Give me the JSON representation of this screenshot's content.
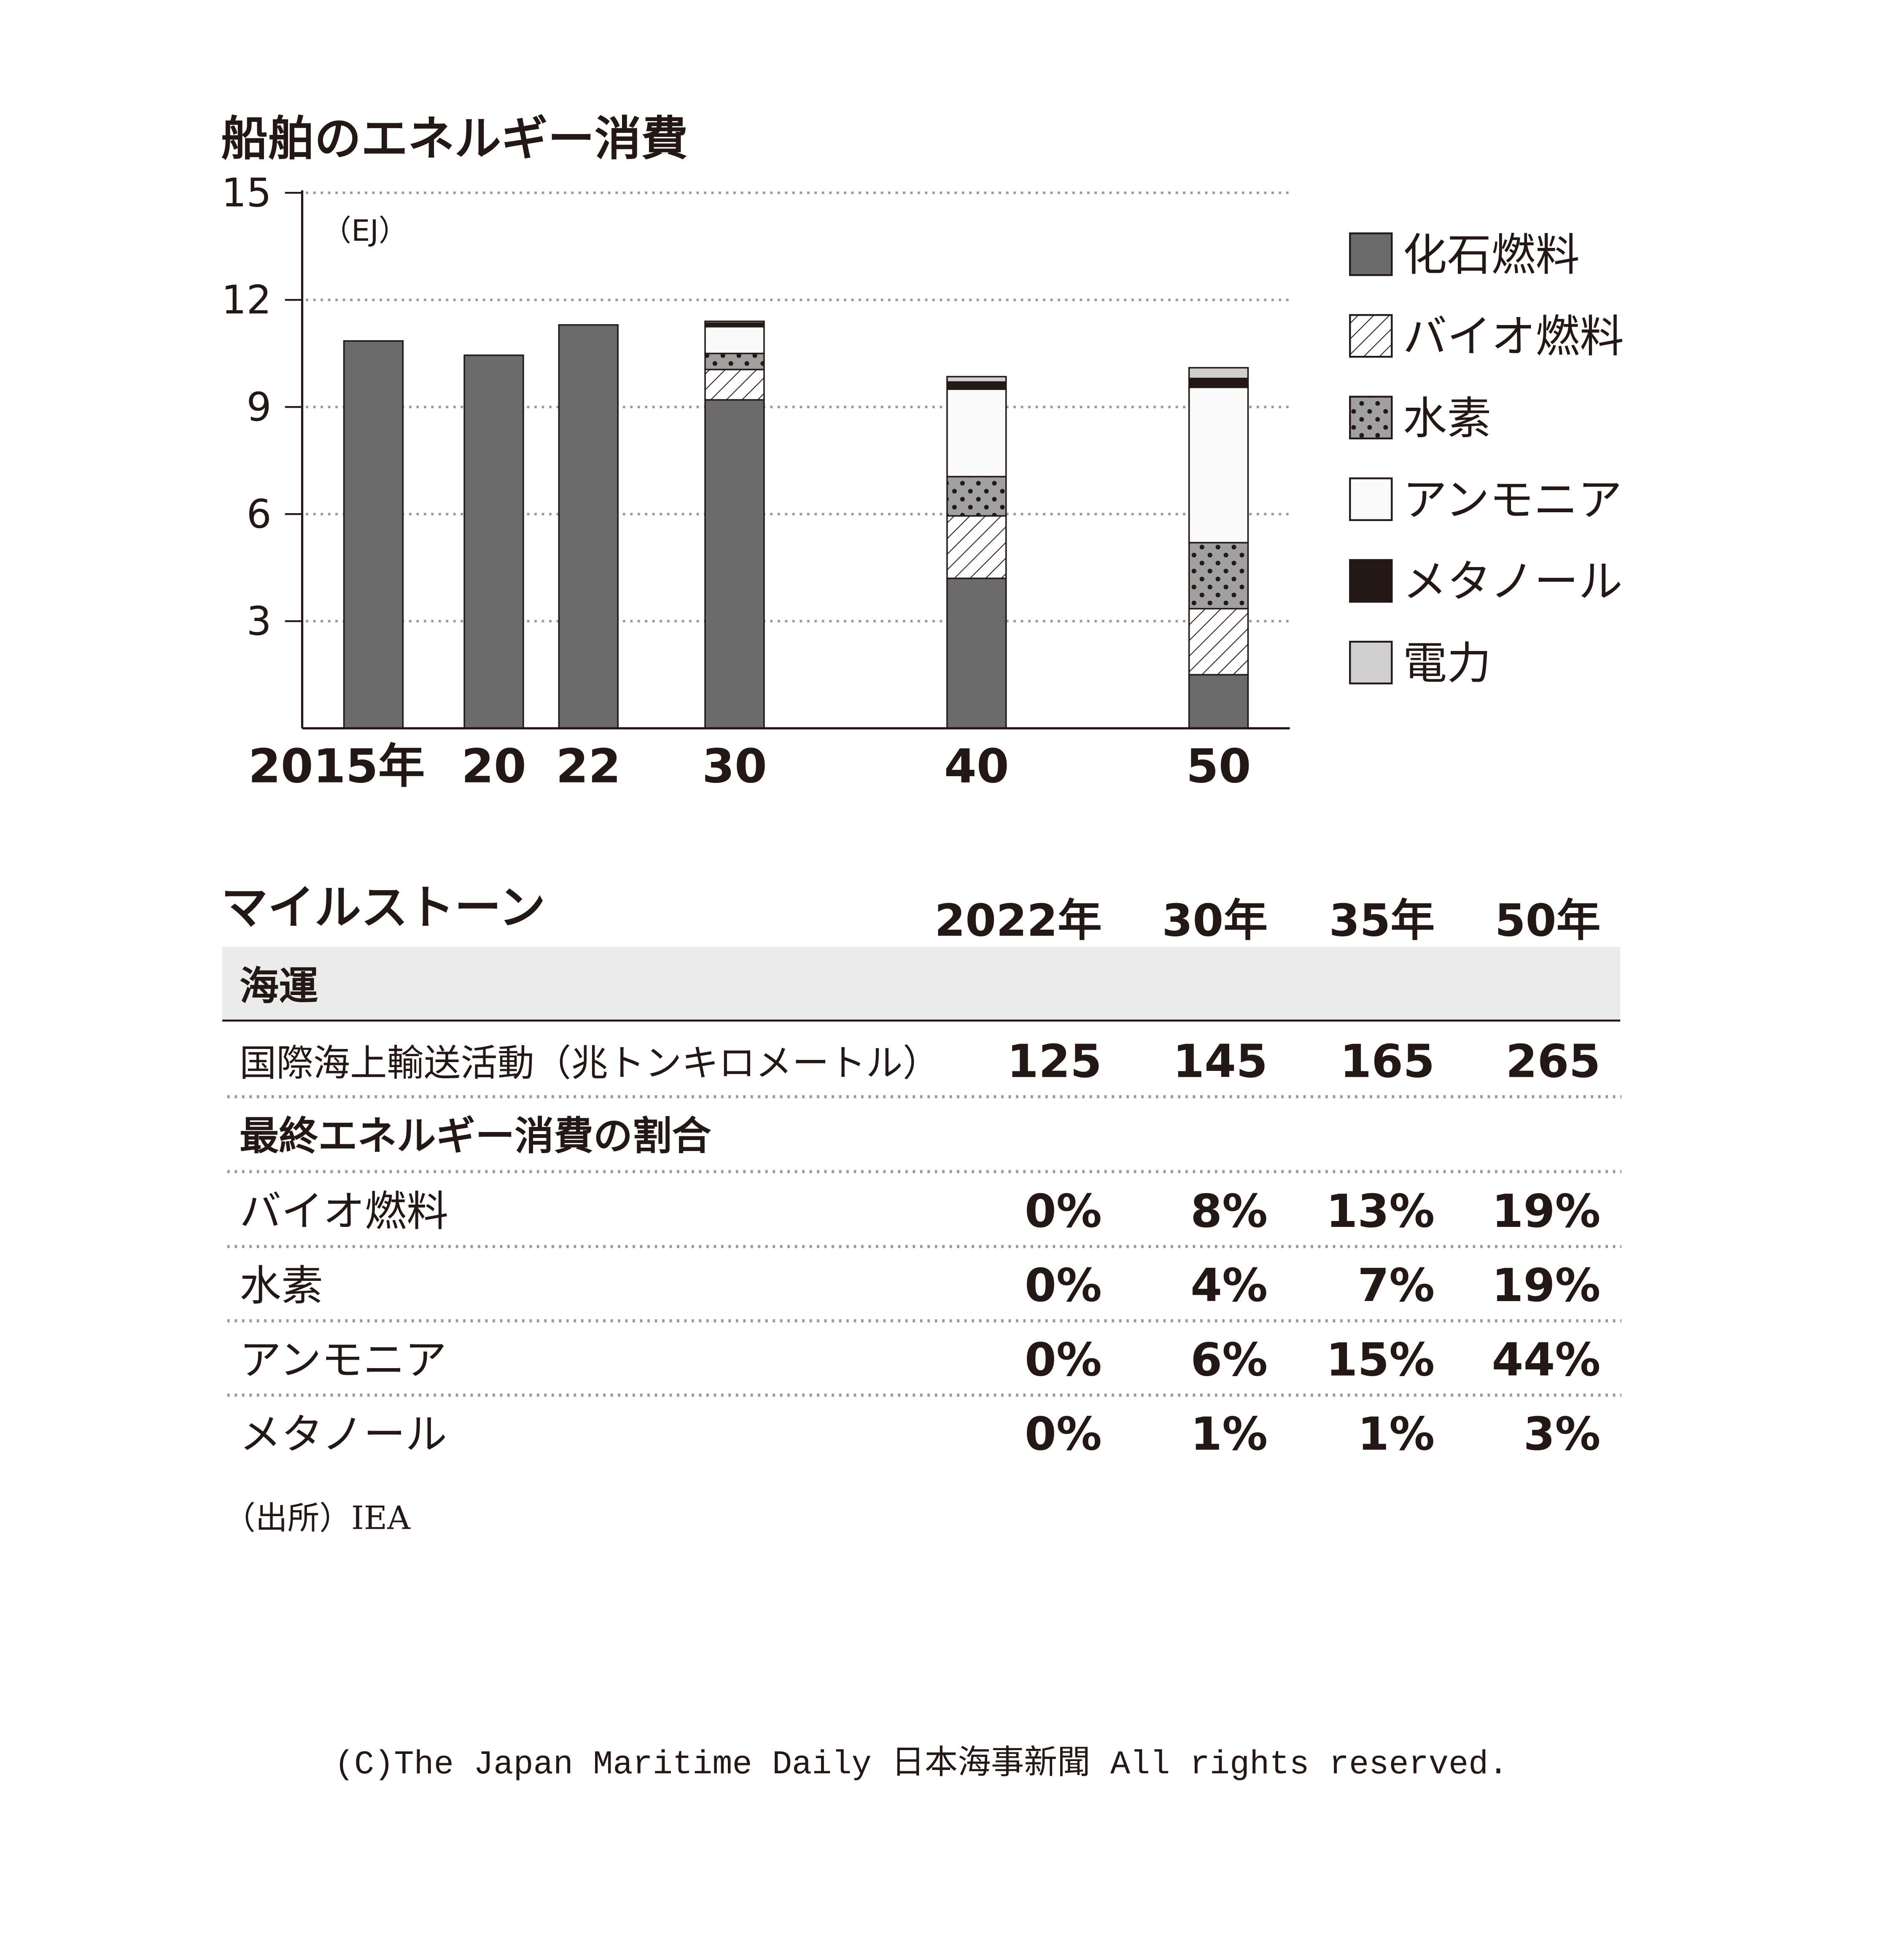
{
  "chart_data": {
    "type": "bar",
    "stacked": true,
    "title": "船舶のエネルギー消費",
    "unit": "（EJ）",
    "ylim": [
      0,
      15
    ],
    "yticks": [
      3,
      6,
      9,
      12,
      15
    ],
    "grid": true,
    "legend_position": "right",
    "categories": [
      "2015年",
      "20",
      "22",
      "30",
      "40",
      "50"
    ],
    "series": [
      {
        "name": "化石燃料",
        "pattern": "solid",
        "color": "#6b6b6b",
        "values": [
          10.85,
          10.45,
          11.3,
          9.2,
          4.2,
          1.5
        ]
      },
      {
        "name": "バイオ燃料",
        "pattern": "hatch",
        "color": "#ffffff",
        "values": [
          0,
          0,
          0,
          0.85,
          1.75,
          1.85
        ]
      },
      {
        "name": "水素",
        "pattern": "dots",
        "color": "#a0a0a0",
        "values": [
          0,
          0,
          0,
          0.45,
          1.1,
          1.85
        ]
      },
      {
        "name": "アンモニア",
        "pattern": "solid",
        "color": "#fafafa",
        "values": [
          0,
          0,
          0,
          0.75,
          2.45,
          4.35
        ]
      },
      {
        "name": "メタノール",
        "pattern": "solid",
        "color": "#231815",
        "values": [
          0,
          0,
          0,
          0.1,
          0.2,
          0.25
        ]
      },
      {
        "name": "電力",
        "pattern": "solid",
        "color": "#cfcfcf",
        "values": [
          0,
          0,
          0,
          0.05,
          0.15,
          0.3
        ]
      }
    ]
  },
  "milestones": {
    "title": "マイルストーン",
    "columns": [
      "2022年",
      "30年",
      "35年",
      "50年"
    ],
    "sections": [
      {
        "header": "海運",
        "rows": [
          {
            "label": "国際海上輸送活動（兆トンキロメートル）",
            "values": [
              "125",
              "145",
              "165",
              "265"
            ]
          }
        ]
      },
      {
        "header": "最終エネルギー消費の割合",
        "rows": [
          {
            "label": "バイオ燃料",
            "values": [
              "0%",
              "8%",
              "13%",
              "19%"
            ]
          },
          {
            "label": "水素",
            "values": [
              "0%",
              "4%",
              "7%",
              "19%"
            ]
          },
          {
            "label": "アンモニア",
            "values": [
              "0%",
              "6%",
              "15%",
              "44%"
            ]
          },
          {
            "label": "メタノール",
            "values": [
              "0%",
              "1%",
              "1%",
              "3%"
            ]
          }
        ]
      }
    ]
  },
  "source": "（出所）IEA",
  "copyright": "(C)The Japan Maritime Daily 日本海事新聞 All rights reserved.",
  "colors": {
    "axis": "#231815",
    "grid": "#9a9a9a",
    "section_bg": "#ebebeb",
    "text": "#231815"
  }
}
